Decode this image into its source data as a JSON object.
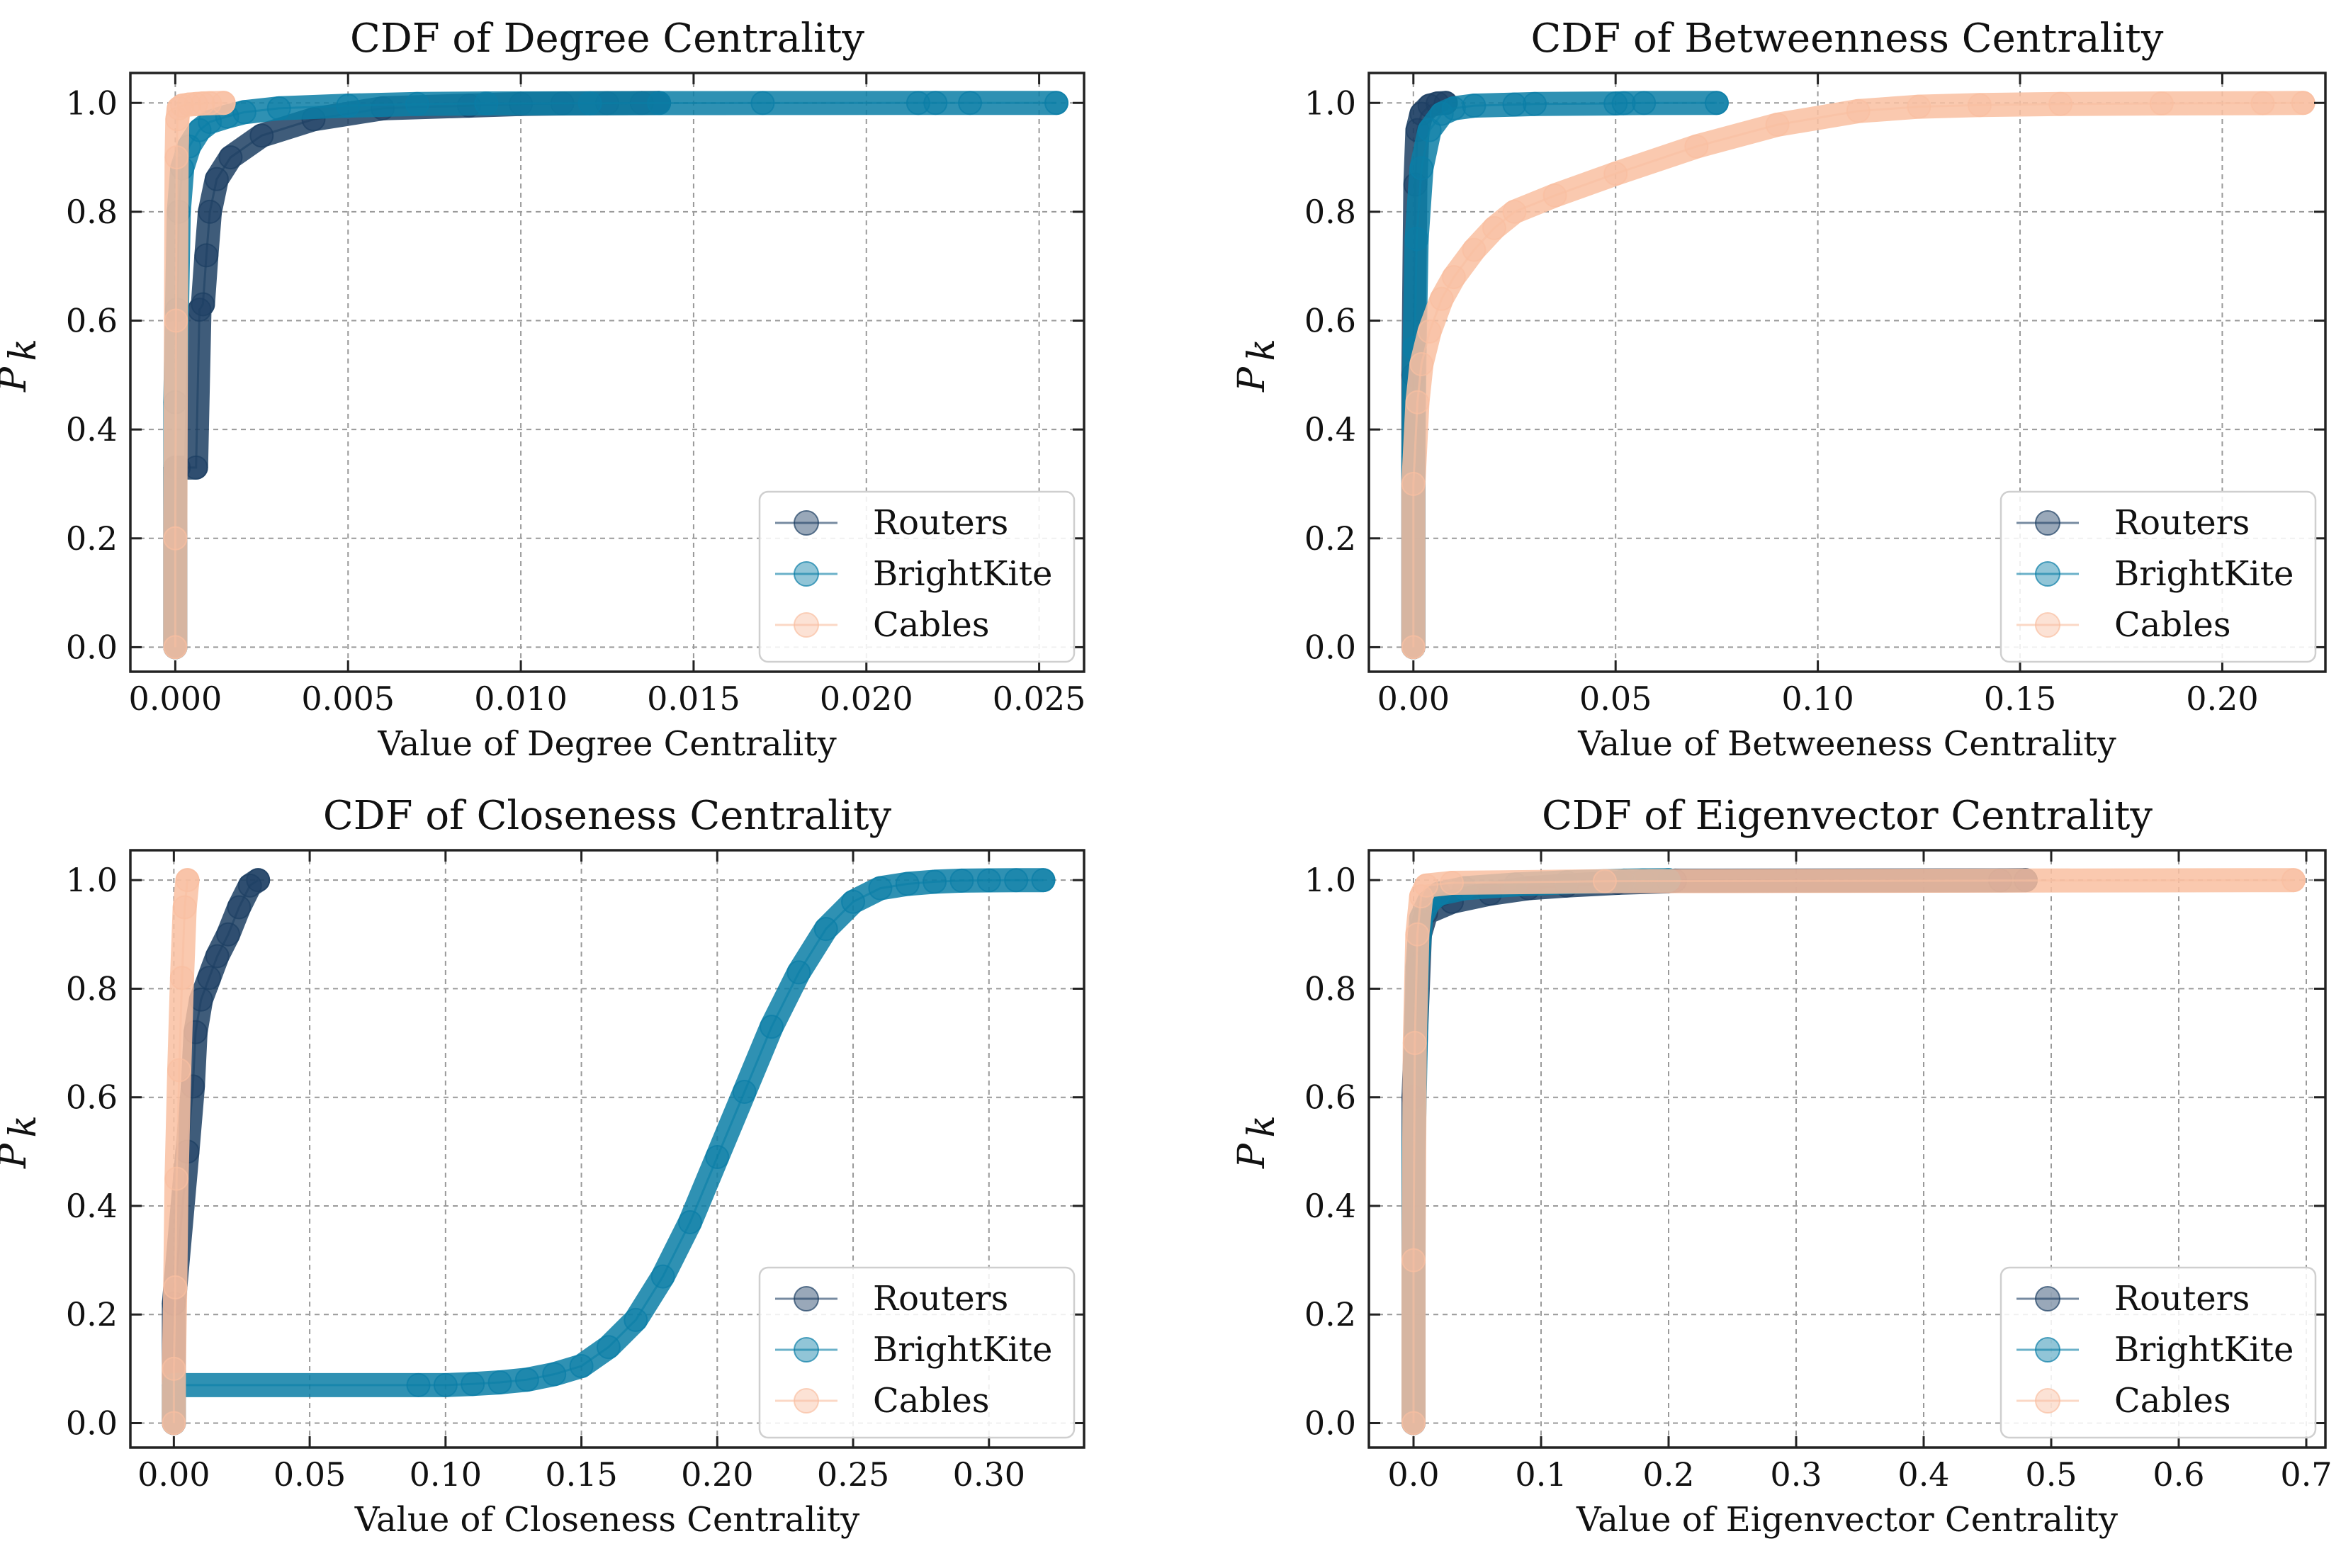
{
  "colors": {
    "Routers": "#1d3f63",
    "BrightKite": "#0a7ea6",
    "Cables": "#f9bfa1"
  },
  "chart_data": [
    {
      "type": "line",
      "title": "CDF of Degree Centrality",
      "xlabel": "Value of Degree Centrality",
      "ylabel": "P_k",
      "ylabel_main": "P",
      "ylabel_sub": "k",
      "xlim": [
        -0.0013,
        0.0263
      ],
      "ylim": [
        -0.045,
        1.055
      ],
      "xticks": [
        0,
        0.005,
        0.01,
        0.015,
        0.02,
        0.025
      ],
      "xtick_labels": [
        "0.000",
        "0.005",
        "0.010",
        "0.015",
        "0.020",
        "0.025"
      ],
      "yticks": [
        0,
        0.2,
        0.4,
        0.6,
        0.8,
        1.0
      ],
      "ytick_labels": [
        "0.0",
        "0.2",
        "0.4",
        "0.6",
        "0.8",
        "1.0"
      ],
      "grid": true,
      "legend": {
        "position": "lower-right",
        "entries": [
          "Routers",
          "BrightKite",
          "Cables"
        ]
      },
      "series": [
        {
          "name": "Routers",
          "x": [
            0,
            0,
            0.0001,
            0.0006,
            0.0007,
            0.0008,
            0.0009,
            0.001,
            0.0012,
            0.0016,
            0.0025,
            0.004,
            0.006,
            0.0085,
            0.01,
            0.0112,
            0.0125,
            0.0135,
            0.014
          ],
          "y": [
            0.0,
            0.33,
            0.33,
            0.33,
            0.62,
            0.63,
            0.72,
            0.8,
            0.86,
            0.9,
            0.94,
            0.97,
            0.99,
            0.995,
            0.998,
            0.999,
            0.9995,
            0.9998,
            1.0
          ]
        },
        {
          "name": "BrightKite",
          "x": [
            0,
            0,
            5e-05,
            0.0001,
            0.0002,
            0.0004,
            0.0007,
            0.001,
            0.0015,
            0.002,
            0.003,
            0.005,
            0.007,
            0.009,
            0.012,
            0.014,
            0.017,
            0.0215,
            0.022,
            0.023,
            0.0255
          ],
          "y": [
            0.0,
            0.45,
            0.62,
            0.8,
            0.88,
            0.92,
            0.95,
            0.965,
            0.975,
            0.983,
            0.99,
            0.995,
            0.998,
            0.999,
            0.9994,
            0.9997,
            0.9998,
            0.9999,
            0.99995,
            0.99998,
            1.0
          ]
        },
        {
          "name": "Cables",
          "x": [
            0,
            0,
            2e-05,
            4e-05,
            6e-05,
            0.0001,
            0.0002,
            0.0004,
            0.0006,
            0.0008,
            0.001,
            0.0014
          ],
          "y": [
            0.0,
            0.2,
            0.6,
            0.9,
            0.97,
            0.99,
            0.995,
            0.997,
            0.998,
            0.999,
            0.9995,
            1.0
          ]
        }
      ]
    },
    {
      "type": "line",
      "title": "CDF of Betweenness Centrality",
      "xlabel": "Value of Betweeness Centrality",
      "ylabel": "P_k",
      "ylabel_main": "P",
      "ylabel_sub": "k",
      "xlim": [
        -0.011,
        0.2255
      ],
      "ylim": [
        -0.045,
        1.055
      ],
      "xticks": [
        0,
        0.05,
        0.1,
        0.15,
        0.2
      ],
      "xtick_labels": [
        "0.00",
        "0.05",
        "0.10",
        "0.15",
        "0.20"
      ],
      "yticks": [
        0,
        0.2,
        0.4,
        0.6,
        0.8,
        1.0
      ],
      "ytick_labels": [
        "0.0",
        "0.2",
        "0.4",
        "0.6",
        "0.8",
        "1.0"
      ],
      "grid": true,
      "legend": {
        "position": "lower-right",
        "entries": [
          "Routers",
          "BrightKite",
          "Cables"
        ]
      },
      "series": [
        {
          "name": "Routers",
          "x": [
            0,
            0,
            0.0005,
            0.001,
            0.002,
            0.004,
            0.006,
            0.008
          ],
          "y": [
            0.0,
            0.5,
            0.85,
            0.95,
            0.98,
            0.995,
            0.999,
            1.0
          ]
        },
        {
          "name": "BrightKite",
          "x": [
            0,
            0,
            0.0003,
            0.0008,
            0.002,
            0.004,
            0.007,
            0.01,
            0.015,
            0.025,
            0.03,
            0.05,
            0.052,
            0.057,
            0.075
          ],
          "y": [
            0.0,
            0.35,
            0.55,
            0.75,
            0.88,
            0.95,
            0.98,
            0.99,
            0.995,
            0.997,
            0.998,
            0.999,
            0.9995,
            0.9998,
            1.0
          ]
        },
        {
          "name": "Cables",
          "x": [
            0,
            0,
            0.001,
            0.002,
            0.004,
            0.007,
            0.01,
            0.015,
            0.02,
            0.025,
            0.035,
            0.05,
            0.07,
            0.09,
            0.11,
            0.125,
            0.14,
            0.16,
            0.185,
            0.21,
            0.22
          ],
          "y": [
            0.0,
            0.3,
            0.45,
            0.52,
            0.58,
            0.64,
            0.68,
            0.73,
            0.77,
            0.8,
            0.83,
            0.87,
            0.92,
            0.96,
            0.985,
            0.993,
            0.996,
            0.998,
            0.999,
            0.9995,
            1.0
          ]
        }
      ]
    },
    {
      "type": "line",
      "title": "CDF of Closeness Centrality",
      "xlabel": "Value of Closeness Centrality",
      "ylabel": "P_k",
      "ylabel_main": "P",
      "ylabel_sub": "k",
      "xlim": [
        -0.016,
        0.335
      ],
      "ylim": [
        -0.045,
        1.055
      ],
      "xticks": [
        0,
        0.05,
        0.1,
        0.15,
        0.2,
        0.25,
        0.3
      ],
      "xtick_labels": [
        "0.00",
        "0.05",
        "0.10",
        "0.15",
        "0.20",
        "0.25",
        "0.30"
      ],
      "yticks": [
        0,
        0.2,
        0.4,
        0.6,
        0.8,
        1.0
      ],
      "ytick_labels": [
        "0.0",
        "0.2",
        "0.4",
        "0.6",
        "0.8",
        "1.0"
      ],
      "grid": true,
      "legend": {
        "position": "lower-right",
        "entries": [
          "Routers",
          "BrightKite",
          "Cables"
        ]
      },
      "series": [
        {
          "name": "Routers",
          "x": [
            0,
            0,
            0.005,
            0.007,
            0.008,
            0.01,
            0.013,
            0.016,
            0.02,
            0.024,
            0.028,
            0.031
          ],
          "y": [
            0.0,
            0.22,
            0.5,
            0.62,
            0.72,
            0.78,
            0.82,
            0.86,
            0.9,
            0.95,
            0.99,
            1.0
          ]
        },
        {
          "name": "BrightKite",
          "x": [
            0,
            0,
            0.09,
            0.1,
            0.11,
            0.12,
            0.13,
            0.14,
            0.15,
            0.16,
            0.17,
            0.18,
            0.19,
            0.2,
            0.21,
            0.22,
            0.23,
            0.24,
            0.25,
            0.26,
            0.27,
            0.28,
            0.29,
            0.3,
            0.31,
            0.32
          ],
          "y": [
            0.0,
            0.07,
            0.07,
            0.07,
            0.072,
            0.075,
            0.08,
            0.09,
            0.105,
            0.14,
            0.19,
            0.27,
            0.37,
            0.49,
            0.61,
            0.73,
            0.83,
            0.91,
            0.96,
            0.985,
            0.993,
            0.997,
            0.999,
            0.9995,
            0.9998,
            1.0
          ]
        },
        {
          "name": "Cables",
          "x": [
            0,
            0,
            0.0005,
            0.001,
            0.002,
            0.003,
            0.004,
            0.005
          ],
          "y": [
            0.0,
            0.1,
            0.25,
            0.45,
            0.65,
            0.82,
            0.95,
            1.0
          ]
        }
      ]
    },
    {
      "type": "line",
      "title": "CDF of Eigenvector Centrality",
      "xlabel": "Value of Eigenvector Centrality",
      "ylabel": "P_k",
      "ylabel_main": "P",
      "ylabel_sub": "k",
      "xlim": [
        -0.035,
        0.715
      ],
      "ylim": [
        -0.045,
        1.055
      ],
      "xticks": [
        0,
        0.1,
        0.2,
        0.3,
        0.4,
        0.5,
        0.6,
        0.7
      ],
      "xtick_labels": [
        "0.0",
        "0.1",
        "0.2",
        "0.3",
        "0.4",
        "0.5",
        "0.6",
        "0.7"
      ],
      "yticks": [
        0,
        0.2,
        0.4,
        0.6,
        0.8,
        1.0
      ],
      "ytick_labels": [
        "0.0",
        "0.2",
        "0.4",
        "0.6",
        "0.8",
        "1.0"
      ],
      "grid": true,
      "legend": {
        "position": "lower-right",
        "entries": [
          "Routers",
          "BrightKite",
          "Cables"
        ]
      },
      "series": [
        {
          "name": "Routers",
          "x": [
            0,
            0,
            0.005,
            0.01,
            0.03,
            0.06,
            0.09,
            0.12,
            0.16,
            0.2,
            0.205,
            0.46,
            0.48
          ],
          "y": [
            0.0,
            0.6,
            0.9,
            0.94,
            0.96,
            0.975,
            0.985,
            0.99,
            0.995,
            0.998,
            0.999,
            0.9995,
            1.0
          ]
        },
        {
          "name": "BrightKite",
          "x": [
            0,
            0,
            0.003,
            0.006,
            0.012,
            0.02,
            0.04,
            0.08,
            0.12,
            0.15,
            0.165,
            0.18,
            0.2
          ],
          "y": [
            0.0,
            0.5,
            0.84,
            0.93,
            0.96,
            0.975,
            0.985,
            0.992,
            0.996,
            0.998,
            0.999,
            0.9995,
            1.0
          ]
        },
        {
          "name": "Cables",
          "x": [
            0,
            0,
            0.001,
            0.003,
            0.006,
            0.01,
            0.03,
            0.15,
            0.69
          ],
          "y": [
            0.0,
            0.3,
            0.7,
            0.9,
            0.97,
            0.99,
            0.995,
            0.998,
            1.0
          ]
        }
      ]
    }
  ]
}
